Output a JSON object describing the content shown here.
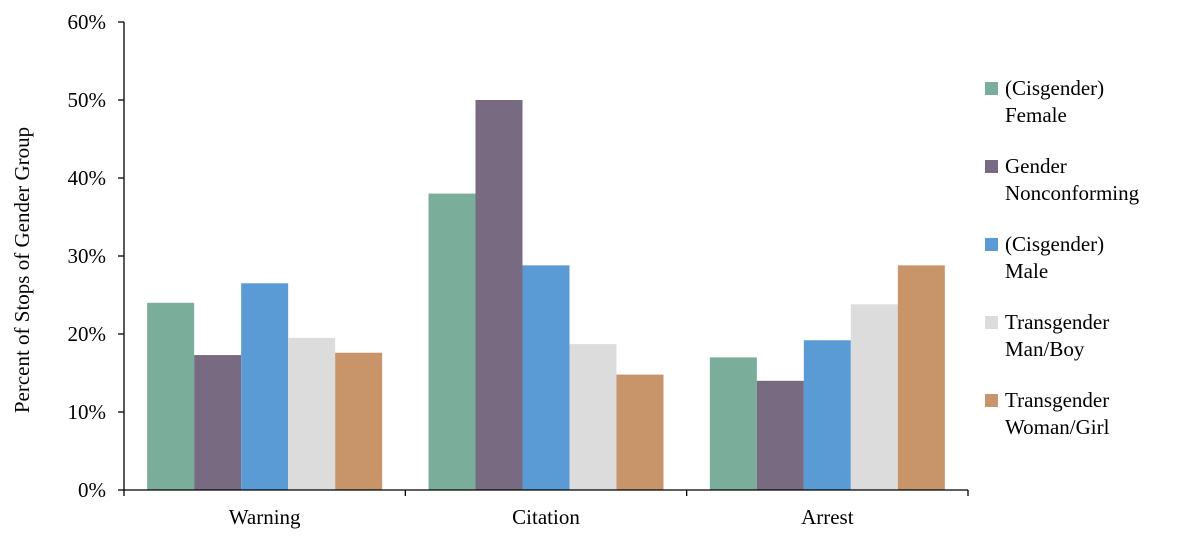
{
  "chart_data": {
    "type": "bar",
    "title": "",
    "xlabel": "",
    "ylabel": "Percent of Stops of Gender Group",
    "ylim": [
      0,
      0.6
    ],
    "yticks": [
      0,
      0.1,
      0.2,
      0.3,
      0.4,
      0.5,
      0.6
    ],
    "yticklabels": [
      "0%",
      "10%",
      "20%",
      "30%",
      "40%",
      "50%",
      "60%"
    ],
    "categories": [
      "Warning",
      "Citation",
      "Arrest"
    ],
    "grid": false,
    "legend_position": "right",
    "series": [
      {
        "name": "(Cisgender) Female",
        "legend_lines": [
          "(Cisgender)",
          "Female"
        ],
        "color": "#7aae9b",
        "values": [
          0.24,
          0.38,
          0.17
        ]
      },
      {
        "name": "Gender Nonconforming",
        "legend_lines": [
          "Gender",
          "Nonconforming"
        ],
        "color": "#786a80",
        "values": [
          0.173,
          0.5,
          0.14
        ]
      },
      {
        "name": "(Cisgender) Male",
        "legend_lines": [
          "(Cisgender)",
          "Male"
        ],
        "color": "#5b9bd5",
        "values": [
          0.265,
          0.288,
          0.192
        ]
      },
      {
        "name": "Transgender Man/Boy",
        "legend_lines": [
          "Transgender",
          "Man/Boy"
        ],
        "color": "#dcdcdc",
        "values": [
          0.195,
          0.187,
          0.238
        ]
      },
      {
        "name": "Transgender Woman/Girl",
        "legend_lines": [
          "Transgender",
          "Woman/Girl"
        ],
        "color": "#c8956b",
        "values": [
          0.176,
          0.148,
          0.288
        ]
      }
    ]
  }
}
